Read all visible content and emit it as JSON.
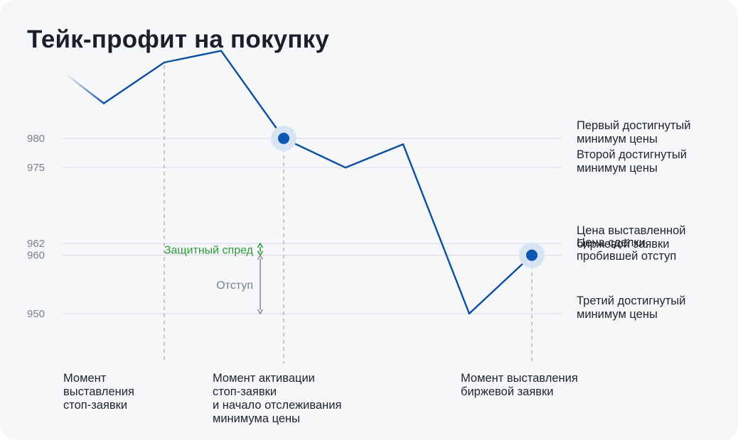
{
  "title": "Тейк-профит на покупку",
  "chart_data": {
    "type": "line",
    "title": "Тейк-профит на покупку",
    "xlabel": "",
    "ylabel": "",
    "y_ticks": [
      980,
      975,
      962,
      960,
      950
    ],
    "grid": true,
    "series": [
      {
        "values": [
          986,
          993,
          995,
          980,
          975,
          979,
          950,
          960
        ]
      }
    ],
    "markers": [
      {
        "index": 3,
        "value": 980
      },
      {
        "index": 7,
        "value": 960
      }
    ],
    "colors": {
      "line": "#0a4ea1",
      "marker": "#0b57b3",
      "spread": "#2a9a3c",
      "offset": "#8a8f96"
    },
    "annotations": {
      "spread": {
        "text": "Защитный спред",
        "from": 960,
        "to": 962
      },
      "offset": {
        "text": "Отступ",
        "from": 950,
        "to": 960
      }
    }
  },
  "right_labels": [
    {
      "text": "Первый достигнутый\nминимум цены",
      "value": 980
    },
    {
      "text": "Второй достигнутый\nминимум цены",
      "value": 975
    },
    {
      "text": "Цена выставленной\nбиржевой заявки",
      "value": 962
    },
    {
      "text": "Цена сделки,\nпробившей отступ",
      "value": 960
    },
    {
      "text": "Третий достигнутый\nминимум цены",
      "value": 950
    }
  ],
  "bottom_labels": [
    {
      "text": "Момент\nвыставления\nстоп-заявки",
      "index": 1
    },
    {
      "text": "Момент активации\nстоп-заявки\nи начало отслеживания\nминимума цены",
      "index": 3
    },
    {
      "text": "Момент выставления\nбиржевой заявки",
      "index": 7
    }
  ]
}
